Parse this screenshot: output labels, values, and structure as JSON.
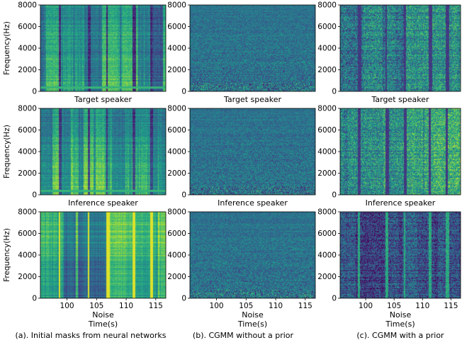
{
  "chart_data": {
    "type": "heatmap",
    "colormap": "viridis",
    "colormap_stops": [
      "#440154",
      "#46327e",
      "#365c8d",
      "#277f8e",
      "#1fa187",
      "#4ac16d",
      "#a0da39",
      "#fde725"
    ],
    "ylabel": "Frequency(Hz)",
    "xlabel": "Time(s)",
    "yticks": [
      "0",
      "2000",
      "4000",
      "6000",
      "8000"
    ],
    "ylim": [
      0,
      8000
    ],
    "xticks": [
      "100",
      "105",
      "110",
      "115"
    ],
    "xlim": [
      95.5,
      116.7
    ],
    "row_titles": [
      "Target speaker",
      "Inference speaker",
      "Noise"
    ],
    "column_captions": [
      "(a). Initial masks from neural networks",
      "(b). CGMM without a prior",
      "(c). CGMM with a prior"
    ],
    "panels": [
      {
        "row": 0,
        "col": 0,
        "title": "Target speaker",
        "style": "mask-speech"
      },
      {
        "row": 0,
        "col": 1,
        "title": "Target speaker",
        "style": "cgmm-noprior"
      },
      {
        "row": 0,
        "col": 2,
        "title": "Target speaker",
        "style": "cgmm-prior"
      },
      {
        "row": 1,
        "col": 0,
        "title": "Inference speaker",
        "style": "mask-speech-bright"
      },
      {
        "row": 1,
        "col": 1,
        "title": "Inference speaker",
        "style": "cgmm-noprior"
      },
      {
        "row": 1,
        "col": 2,
        "title": "Inference speaker",
        "style": "cgmm-prior-bright"
      },
      {
        "row": 2,
        "col": 0,
        "title": "Noise",
        "style": "mask-noise"
      },
      {
        "row": 2,
        "col": 1,
        "title": "Noise",
        "style": "cgmm-noprior"
      },
      {
        "row": 2,
        "col": 2,
        "title": "Noise",
        "style": "cgmm-prior-dark"
      }
    ]
  }
}
